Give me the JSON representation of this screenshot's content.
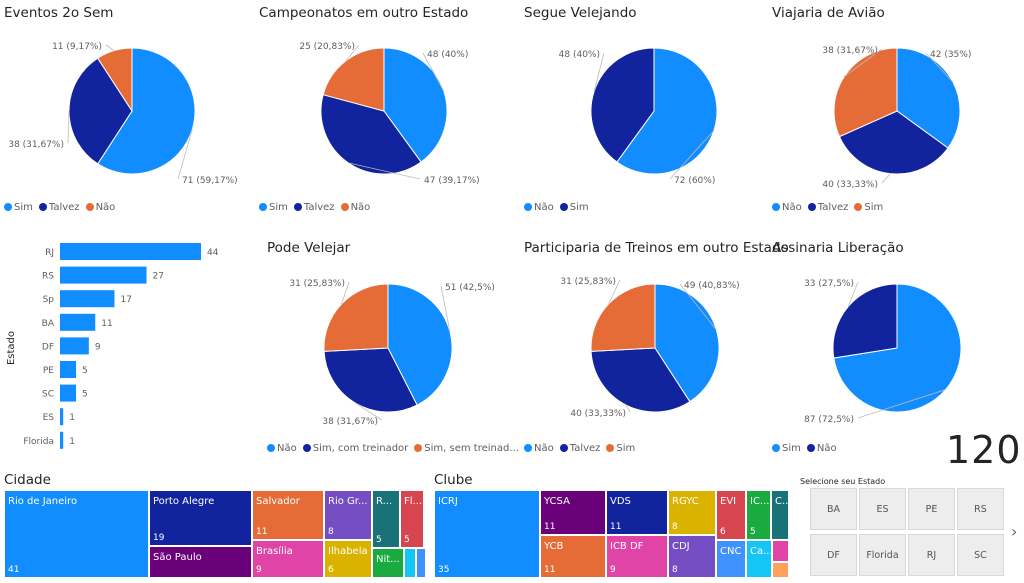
{
  "colors": {
    "blue": "#118DFF",
    "navy": "#12239E",
    "orange": "#E66C37",
    "green": "#1AAB40",
    "purple": "#6B007B"
  },
  "pies": [
    {
      "id": "eventos",
      "title": "Eventos 2o Sem",
      "legend": [
        "Sim",
        "Talvez",
        "Não"
      ],
      "slices": [
        {
          "name": "Sim",
          "value": 71,
          "label": "71 (59,17%)",
          "color": "#118DFF"
        },
        {
          "name": "Talvez",
          "value": 38,
          "label": "38 (31,67%)",
          "color": "#12239E"
        },
        {
          "name": "Não",
          "value": 11,
          "label": "11 (9,17%)",
          "color": "#E66C37"
        }
      ]
    },
    {
      "id": "campeonatos",
      "title": "Campeonatos em outro Estado",
      "legend": [
        "Sim",
        "Talvez",
        "Não"
      ],
      "slices": [
        {
          "name": "Sim",
          "value": 48,
          "label": "48 (40%)",
          "color": "#118DFF"
        },
        {
          "name": "Talvez",
          "value": 47,
          "label": "47 (39,17%)",
          "color": "#12239E"
        },
        {
          "name": "Não",
          "value": 25,
          "label": "25 (20,83%)",
          "color": "#E66C37"
        }
      ]
    },
    {
      "id": "segue",
      "title": "Segue Velejando",
      "legend": [
        "Não",
        "Sim"
      ],
      "slices": [
        {
          "name": "Não",
          "value": 72,
          "label": "72 (60%)",
          "color": "#118DFF"
        },
        {
          "name": "Sim",
          "value": 48,
          "label": "48 (40%)",
          "color": "#12239E"
        }
      ]
    },
    {
      "id": "viajaria",
      "title": "Viajaria de Avião",
      "legend": [
        "Não",
        "Talvez",
        "Sim"
      ],
      "slices": [
        {
          "name": "Não",
          "value": 42,
          "label": "42 (35%)",
          "color": "#118DFF"
        },
        {
          "name": "Talvez",
          "value": 40,
          "label": "40 (33,33%)",
          "color": "#12239E"
        },
        {
          "name": "Sim",
          "value": 38,
          "label": "38 (31,67%)",
          "color": "#E66C37"
        }
      ]
    },
    {
      "id": "pode",
      "title": "Pode Velejar",
      "legend": [
        "Não",
        "Sim, com treinador",
        "Sim, sem treinad..."
      ],
      "slices": [
        {
          "name": "Não",
          "value": 51,
          "label": "51 (42,5%)",
          "color": "#118DFF"
        },
        {
          "name": "Sim, com treinador",
          "value": 38,
          "label": "38 (31,67%)",
          "color": "#12239E"
        },
        {
          "name": "Sim, sem treinador",
          "value": 31,
          "label": "31 (25,83%)",
          "color": "#E66C37"
        }
      ]
    },
    {
      "id": "participaria",
      "title": "Participaria de Treinos em outro Estado",
      "legend": [
        "Não",
        "Talvez",
        "Sim"
      ],
      "slices": [
        {
          "name": "Não",
          "value": 49,
          "label": "49 (40,83%)",
          "color": "#118DFF"
        },
        {
          "name": "Talvez",
          "value": 40,
          "label": "40 (33,33%)",
          "color": "#12239E"
        },
        {
          "name": "Sim",
          "value": 31,
          "label": "31 (25,83%)",
          "color": "#E66C37"
        }
      ]
    },
    {
      "id": "assinaria",
      "title": "Assinaria Liberação",
      "legend": [
        "Sim",
        "Não"
      ],
      "slices": [
        {
          "name": "Sim",
          "value": 87,
          "label": "87 (72,5%)",
          "color": "#118DFF"
        },
        {
          "name": "Não",
          "value": 33,
          "label": "33 (27,5%)",
          "color": "#12239E"
        }
      ]
    }
  ],
  "chart_data": [
    {
      "type": "pie",
      "title": "Eventos 2o Sem",
      "categories": [
        "Sim",
        "Talvez",
        "Não"
      ],
      "values": [
        71,
        38,
        11
      ]
    },
    {
      "type": "pie",
      "title": "Campeonatos em outro Estado",
      "categories": [
        "Sim",
        "Talvez",
        "Não"
      ],
      "values": [
        48,
        47,
        25
      ]
    },
    {
      "type": "pie",
      "title": "Segue Velejando",
      "categories": [
        "Não",
        "Sim"
      ],
      "values": [
        72,
        48
      ]
    },
    {
      "type": "pie",
      "title": "Viajaria de Avião",
      "categories": [
        "Não",
        "Talvez",
        "Sim"
      ],
      "values": [
        42,
        40,
        38
      ]
    },
    {
      "type": "pie",
      "title": "Pode Velejar",
      "categories": [
        "Não",
        "Sim, com treinador",
        "Sim, sem treinador"
      ],
      "values": [
        51,
        38,
        31
      ]
    },
    {
      "type": "pie",
      "title": "Participaria de Treinos em outro Estado",
      "categories": [
        "Não",
        "Talvez",
        "Sim"
      ],
      "values": [
        49,
        40,
        31
      ]
    },
    {
      "type": "pie",
      "title": "Assinaria Liberação",
      "categories": [
        "Sim",
        "Não"
      ],
      "values": [
        87,
        33
      ]
    },
    {
      "type": "bar",
      "orientation": "horizontal",
      "ylabel": "Estado",
      "categories": [
        "RJ",
        "RS",
        "Sp",
        "BA",
        "DF",
        "PE",
        "SC",
        "ES",
        "Florida"
      ],
      "values": [
        44,
        27,
        17,
        11,
        9,
        5,
        5,
        1,
        1
      ]
    },
    {
      "type": "treemap",
      "title": "Cidade",
      "categories": [
        "Rio de Janeiro",
        "Porto Alegre",
        "São Paulo",
        "Salvador",
        "Brasília",
        "Rio Gr...",
        "Ilhabela",
        "R...",
        "Fl...",
        "Nit..."
      ],
      "values": [
        41,
        19,
        null,
        11,
        9,
        8,
        6,
        5,
        5,
        null
      ]
    },
    {
      "type": "treemap",
      "title": "Clube",
      "categories": [
        "ICRJ",
        "YCSA",
        "YCB",
        "VDS",
        "ICB DF",
        "RGYC",
        "CDJ",
        "EVI",
        "IC...",
        "C...",
        "CNC",
        "Ca..."
      ],
      "values": [
        35,
        11,
        11,
        11,
        9,
        8,
        8,
        6,
        5,
        null,
        null,
        null
      ]
    }
  ],
  "estado_bar": {
    "axis_label": "Estado",
    "bars": [
      {
        "cat": "RJ",
        "val": 44
      },
      {
        "cat": "RS",
        "val": 27
      },
      {
        "cat": "Sp",
        "val": 17
      },
      {
        "cat": "BA",
        "val": 11
      },
      {
        "cat": "DF",
        "val": 9
      },
      {
        "cat": "PE",
        "val": 5
      },
      {
        "cat": "SC",
        "val": 5
      },
      {
        "cat": "ES",
        "val": 1
      },
      {
        "cat": "Florida",
        "val": 1
      }
    ]
  },
  "cidade": {
    "title": "Cidade",
    "cells": [
      {
        "label": "Rio de Janeiro",
        "value": "41",
        "color": "#118DFF"
      },
      {
        "label": "Porto Alegre",
        "value": "19",
        "color": "#12239E"
      },
      {
        "label": "São Paulo",
        "value": "",
        "color": "#6B007B"
      },
      {
        "label": "Salvador",
        "value": "11",
        "color": "#E66C37"
      },
      {
        "label": "Brasília",
        "value": "9",
        "color": "#E044A7"
      },
      {
        "label": "Rio Gr...",
        "value": "8",
        "color": "#744EC2"
      },
      {
        "label": "Ilhabela",
        "value": "6",
        "color": "#D9B300"
      },
      {
        "label": "R...",
        "value": "5",
        "color": "#197278"
      },
      {
        "label": "Fl...",
        "value": "5",
        "color": "#D64550"
      },
      {
        "label": "Nit...",
        "value": "",
        "color": "#1AAB40"
      },
      {
        "label": "",
        "value": "",
        "color": "#15C6F4"
      },
      {
        "label": "",
        "value": "",
        "color": "#4092FF"
      }
    ]
  },
  "clube": {
    "title": "Clube",
    "cells": [
      {
        "label": "ICRJ",
        "value": "35",
        "color": "#118DFF"
      },
      {
        "label": "YCSA",
        "value": "11",
        "color": "#6B007B"
      },
      {
        "label": "YCB",
        "value": "11",
        "color": "#E66C37"
      },
      {
        "label": "VDS",
        "value": "11",
        "color": "#12239E"
      },
      {
        "label": "ICB DF",
        "value": "9",
        "color": "#E044A7"
      },
      {
        "label": "RGYC",
        "value": "8",
        "color": "#D9B300"
      },
      {
        "label": "CDJ",
        "value": "8",
        "color": "#744EC2"
      },
      {
        "label": "EVI",
        "value": "6",
        "color": "#D64550"
      },
      {
        "label": "IC...",
        "value": "5",
        "color": "#1AAB40"
      },
      {
        "label": "C...",
        "value": "",
        "color": "#197278"
      },
      {
        "label": "CNC",
        "value": "",
        "color": "#4092FF"
      },
      {
        "label": "Ca...",
        "value": "",
        "color": "#15C6F4"
      },
      {
        "label": "",
        "value": "",
        "color": "#E044A7"
      },
      {
        "label": "",
        "value": "",
        "color": "#FFA058"
      }
    ]
  },
  "kpi": {
    "value": "120"
  },
  "slicer": {
    "title": "Selecione seu Estado",
    "options": [
      "BA",
      "ES",
      "PE",
      "RS",
      "DF",
      "Florida",
      "RJ",
      "SC"
    ],
    "next_label": "›"
  }
}
